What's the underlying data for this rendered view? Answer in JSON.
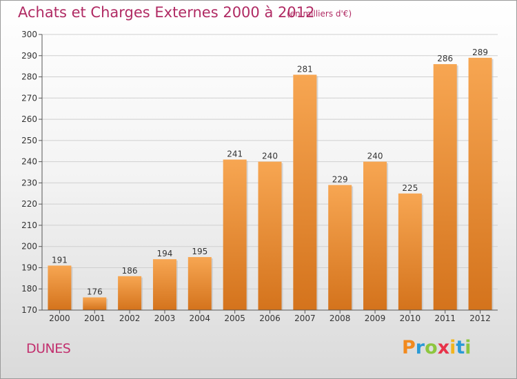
{
  "title": "Achats et Charges Externes 2000 à 2012",
  "subtitle": "(en milliers d'€)",
  "place": "DUNES",
  "logo": {
    "text": "Proxiti",
    "letters": [
      {
        "ch": "P",
        "color": "#f28a1e"
      },
      {
        "ch": "r",
        "color": "#2a9ad6"
      },
      {
        "ch": "o",
        "color": "#8dc63f"
      },
      {
        "ch": "x",
        "color": "#e8334a"
      },
      {
        "ch": "i",
        "color": "#f2b51e"
      },
      {
        "ch": "t",
        "color": "#2a9ad6"
      },
      {
        "ch": "i",
        "color": "#8dc63f"
      }
    ]
  },
  "colors": {
    "title": "#b02a63",
    "bar_top": "#f7a652",
    "bar_bottom": "#d4731c",
    "grid": "#cfcfcf",
    "axis": "#555555"
  },
  "chart_data": {
    "type": "bar",
    "categories": [
      "2000",
      "2001",
      "2002",
      "2003",
      "2004",
      "2005",
      "2006",
      "2007",
      "2008",
      "2009",
      "2010",
      "2011",
      "2012"
    ],
    "values": [
      191,
      176,
      186,
      194,
      195,
      241,
      240,
      281,
      229,
      240,
      225,
      286,
      289
    ],
    "ylim": [
      170,
      300
    ],
    "yticks": [
      170,
      180,
      190,
      200,
      210,
      220,
      230,
      240,
      250,
      260,
      270,
      280,
      290,
      300
    ],
    "grid": true,
    "legend": "none"
  }
}
